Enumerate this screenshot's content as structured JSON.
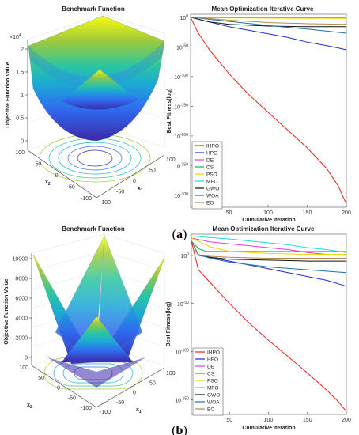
{
  "captions": [
    {
      "paren_open": "(",
      "letter": "a",
      "paren_close": ")"
    },
    {
      "paren_open": "(",
      "letter": "b",
      "paren_close": ")"
    }
  ],
  "chart_data": [
    {
      "type": "surface",
      "title": "Benchmark Function",
      "zlabel": "Objective Function Value",
      "xlabel": "x",
      "xlabel_sub": "1",
      "ylabel": "x",
      "ylabel_sub": "2",
      "z_multiplier": "×10",
      "z_multiplier_exp": "4",
      "zticks": [
        "0",
        "0.5",
        "1",
        "1.5",
        "2"
      ],
      "zlim": [
        0,
        2
      ],
      "xticks": [
        "-100",
        "-50",
        "0",
        "50",
        "100"
      ],
      "yticks": [
        "-100",
        "-50",
        "0",
        "50",
        "100"
      ],
      "shape": "paraboloid",
      "colormap": [
        "#3e26a8",
        "#2f6bf0",
        "#1ba8d6",
        "#2cc6a0",
        "#9fca3a",
        "#f9fb0e"
      ]
    },
    {
      "type": "line",
      "title": "Mean Optimization Iterative Curve",
      "xlabel": "Cumulative Iteration",
      "ylabel": "Best Fitness(log)",
      "yscale": "log",
      "xlim": [
        1,
        200
      ],
      "xticks": [
        "50",
        "100",
        "150",
        "200"
      ],
      "ylim_exp": [
        -320,
        5
      ],
      "yticks": [
        {
          "base": "10",
          "exp": "0",
          "value_exp": 0
        },
        {
          "base": "10",
          "exp": "-50",
          "value_exp": -50
        },
        {
          "base": "10",
          "exp": "-100",
          "value_exp": -100
        },
        {
          "base": "10",
          "exp": "-150",
          "value_exp": -150
        },
        {
          "base": "10",
          "exp": "-200",
          "value_exp": -200
        },
        {
          "base": "10",
          "exp": "-250",
          "value_exp": -250
        },
        {
          "base": "10",
          "exp": "-300",
          "value_exp": -300
        }
      ],
      "legend_position": "bottom-left",
      "series": [
        {
          "name": "IHPO",
          "color": "#e8201c",
          "x": [
            1,
            10,
            25,
            50,
            75,
            100,
            125,
            150,
            175,
            190,
            200
          ],
          "y_log10": [
            0,
            -25,
            -55,
            -95,
            -130,
            -160,
            -190,
            -220,
            -255,
            -285,
            -315
          ]
        },
        {
          "name": "HPO",
          "color": "#1f2bd0",
          "x": [
            1,
            25,
            50,
            75,
            100,
            125,
            150,
            175,
            190,
            200
          ],
          "y_log10": [
            0,
            -8,
            -16,
            -22,
            -28,
            -34,
            -42,
            -48,
            -52,
            -55
          ]
        },
        {
          "name": "DE",
          "color": "#e040d0",
          "x": [
            1,
            200
          ],
          "y_log10": [
            0,
            -1
          ]
        },
        {
          "name": "CS",
          "color": "#22b14c",
          "x": [
            1,
            200
          ],
          "y_log10": [
            0,
            0
          ]
        },
        {
          "name": "PSO",
          "color": "#e8d800",
          "x": [
            1,
            200
          ],
          "y_log10": [
            -1,
            -2
          ]
        },
        {
          "name": "MFO",
          "color": "#21d6e8",
          "x": [
            1,
            200
          ],
          "y_log10": [
            -1,
            -1
          ]
        },
        {
          "name": "GWO",
          "color": "#111111",
          "x": [
            1,
            25,
            50,
            100,
            150,
            200
          ],
          "y_log10": [
            0,
            -8,
            -12,
            -15,
            -16,
            -16
          ]
        },
        {
          "name": "WOA",
          "color": "#1f6fa8",
          "x": [
            1,
            50,
            100,
            150,
            200
          ],
          "y_log10": [
            0,
            -7,
            -14,
            -20,
            -27
          ]
        },
        {
          "name": "EO",
          "color": "#b08850",
          "x": [
            1,
            50,
            100,
            150,
            200
          ],
          "y_log10": [
            0,
            -5,
            -9,
            -11,
            -12
          ]
        }
      ]
    },
    {
      "type": "surface",
      "title": "Benchmark Function",
      "zlabel": "Objective Function Value",
      "xlabel": "x",
      "xlabel_sub": "1",
      "ylabel": "x",
      "ylabel_sub": "2",
      "zticks": [
        "0",
        "2000",
        "4000",
        "6000",
        "8000",
        "10000"
      ],
      "zlim": [
        0,
        10000
      ],
      "xticks": [
        "-100",
        "-50",
        "0",
        "50",
        "100"
      ],
      "yticks": [
        "-100",
        "-50",
        "0",
        "50",
        "100"
      ],
      "shape": "pyramid",
      "colormap": [
        "#3e26a8",
        "#2f6bf0",
        "#1ba8d6",
        "#2cc6a0",
        "#9fca3a",
        "#f9fb0e"
      ]
    },
    {
      "type": "line",
      "title": "Mean Optimization Iterative Curve",
      "xlabel": "Cumulative Iteration",
      "ylabel": "Best Fitness(log)",
      "yscale": "log",
      "xlim": [
        1,
        200
      ],
      "xticks": [
        "50",
        "100",
        "150",
        "200"
      ],
      "ylim_exp": [
        -165,
        22
      ],
      "yticks": [
        {
          "base": "10",
          "exp": "0",
          "value_exp": 0
        },
        {
          "base": "10",
          "exp": "-50",
          "value_exp": -50
        },
        {
          "base": "10",
          "exp": "-100",
          "value_exp": -100
        },
        {
          "base": "10",
          "exp": "-150",
          "value_exp": -150
        }
      ],
      "legend_position": "bottom-left",
      "series": [
        {
          "name": "IHPO",
          "color": "#e8201c",
          "x": [
            1,
            10,
            25,
            50,
            75,
            100,
            125,
            150,
            175,
            190,
            200
          ],
          "y_log10": [
            15,
            -15,
            -28,
            -50,
            -70,
            -88,
            -105,
            -122,
            -140,
            -152,
            -162
          ]
        },
        {
          "name": "HPO",
          "color": "#1f2bd0",
          "x": [
            1,
            10,
            25,
            50,
            75,
            100,
            125,
            150,
            175,
            200
          ],
          "y_log10": [
            15,
            0,
            -2,
            -6,
            -10,
            -14,
            -18,
            -22,
            -26,
            -32
          ]
        },
        {
          "name": "DE",
          "color": "#e040d0",
          "x": [
            1,
            25,
            50,
            75,
            100,
            125,
            150,
            175,
            200
          ],
          "y_log10": [
            18,
            14,
            12,
            10,
            8,
            6,
            3,
            1,
            0
          ]
        },
        {
          "name": "CS",
          "color": "#22b14c",
          "x": [
            1,
            10,
            20,
            200
          ],
          "y_log10": [
            15,
            7,
            4,
            4
          ]
        },
        {
          "name": "PSO",
          "color": "#e8d800",
          "x": [
            1,
            25,
            50,
            100,
            150,
            200
          ],
          "y_log10": [
            18,
            9,
            4,
            2,
            1,
            1
          ]
        },
        {
          "name": "MFO",
          "color": "#21d6e8",
          "x": [
            1,
            50,
            100,
            125,
            150,
            175,
            200
          ],
          "y_log10": [
            20,
            17,
            13,
            11,
            8,
            6,
            3
          ]
        },
        {
          "name": "GWO",
          "color": "#111111",
          "x": [
            1,
            10,
            25,
            50,
            100,
            150,
            200
          ],
          "y_log10": [
            15,
            0,
            -2,
            -4,
            -5,
            -6,
            -6
          ]
        },
        {
          "name": "WOA",
          "color": "#1f6fa8",
          "x": [
            1,
            10,
            25,
            50,
            100,
            150,
            200
          ],
          "y_log10": [
            15,
            1,
            -3,
            -7,
            -12,
            -15,
            -18
          ]
        },
        {
          "name": "EO",
          "color": "#b08850",
          "x": [
            1,
            10,
            25,
            50,
            100,
            150,
            200
          ],
          "y_log10": [
            15,
            0,
            -1,
            -2,
            -3,
            -3,
            -3
          ]
        }
      ]
    }
  ]
}
